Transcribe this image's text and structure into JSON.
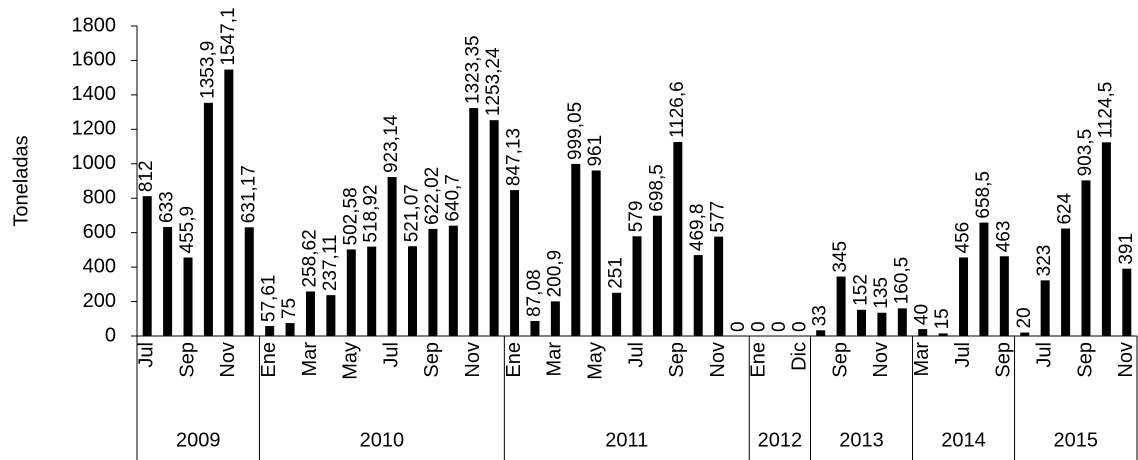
{
  "chart_data": {
    "type": "bar",
    "y_label": "Toneladas",
    "color": "#000000",
    "ylim": [
      0,
      1800
    ],
    "yticks": [
      0,
      200,
      400,
      600,
      800,
      1000,
      1200,
      1400,
      1600,
      1800
    ],
    "groups": [
      {
        "label": "2009",
        "categories": [
          "Jul",
          null,
          "Sep",
          null,
          "Nov",
          null
        ]
      },
      {
        "label": "2010",
        "categories": [
          "Ene",
          null,
          "Mar",
          null,
          "May",
          null,
          "Jul",
          null,
          "Sep",
          null,
          "Nov",
          null
        ]
      },
      {
        "label": "2011",
        "categories": [
          "Ene",
          null,
          "Mar",
          null,
          "May",
          null,
          "Jul",
          null,
          "Sep",
          null,
          "Nov",
          null
        ]
      },
      {
        "label": "2012",
        "categories": [
          "Ene",
          null,
          "Dic"
        ]
      },
      {
        "label": "2013",
        "categories": [
          null,
          "Sep",
          null,
          "Nov",
          null
        ]
      },
      {
        "label": "2014",
        "categories": [
          "Mar",
          null,
          "Jul",
          null,
          "Sep"
        ]
      },
      {
        "label": "2015",
        "categories": [
          null,
          "Jul",
          null,
          "Sep",
          null,
          "Nov"
        ]
      }
    ],
    "values": [
      812,
      633,
      455.9,
      1353.9,
      1547.1,
      631.17,
      57.61,
      75,
      258.62,
      237.11,
      502.58,
      518.92,
      923.14,
      521.07,
      622.02,
      640.7,
      1323.35,
      1253.24,
      847.13,
      87.08,
      200.9,
      999.05,
      961,
      251,
      579,
      698.5,
      1126.6,
      469.8,
      577,
      0,
      0,
      0,
      0,
      33,
      345,
      152,
      135,
      160.5,
      40,
      15,
      456,
      658.5,
      463,
      20,
      323,
      624,
      903.5,
      1124.5,
      391
    ],
    "value_labels": [
      "812",
      "633",
      "455,9",
      "1353,9",
      "1547,1",
      "631,17",
      "57,61",
      "75",
      "258,62",
      "237,11",
      "502,58",
      "518,92",
      "923,14",
      "521,07",
      "622,02",
      "640,7",
      "1323,35",
      "1253,24",
      "847,13",
      "87,08",
      "200,9",
      "999,05",
      "961",
      "251",
      "579",
      "698,5",
      "1126,6",
      "469,8",
      "577",
      "0",
      "0",
      "0",
      "0",
      "33",
      "345",
      "152",
      "135",
      "160,5",
      "40",
      "15",
      "456",
      "658,5",
      "463",
      "20",
      "323",
      "624",
      "903,5",
      "1124,5",
      "391"
    ]
  }
}
